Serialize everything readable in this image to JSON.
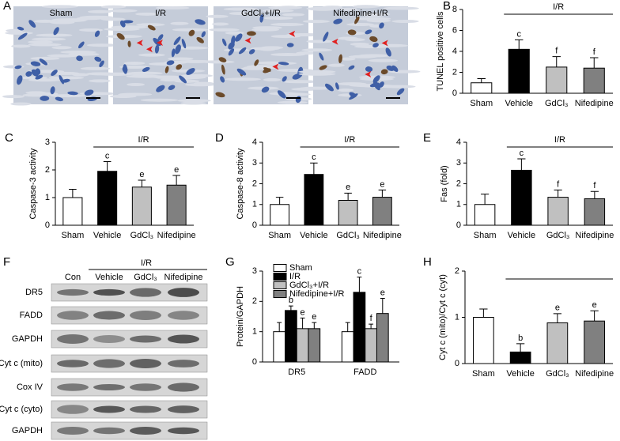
{
  "micrographs": {
    "panel": "A",
    "labels": [
      "Sham",
      "I/R",
      "GdCl₃+I/R",
      "Nifedipine+I/R"
    ]
  },
  "blot": {
    "panel": "F",
    "group": "I/R",
    "lanes": [
      "Con",
      "Vehicle",
      "GdCl₃",
      "Nifedipine"
    ],
    "rows": [
      "DR5",
      "FADD",
      "GAPDH",
      "Cyt c (mito)",
      "Cox IV",
      "Cyt c (cyto)",
      "GAPDH"
    ]
  },
  "chart_data": [
    {
      "type": "bar",
      "panel": "B",
      "ylabel": "TUNEL positive cells",
      "group": "I/R",
      "categories": [
        "Sham",
        "Vehicle",
        "GdCl₃",
        "Nifedipine"
      ],
      "values": [
        1.0,
        4.2,
        2.5,
        2.4
      ],
      "errors": [
        0.4,
        0.9,
        1.0,
        1.0
      ],
      "labels": [
        null,
        "c",
        "f",
        "f"
      ],
      "colors": [
        "#ffffff",
        "#000000",
        "#c0c0c0",
        "#808080"
      ],
      "ylim": [
        0,
        8
      ],
      "yticks": [
        0,
        2,
        4,
        6,
        8
      ]
    },
    {
      "type": "bar",
      "panel": "C",
      "ylabel": "Caspase-3 activity",
      "group": "I/R",
      "categories": [
        "Sham",
        "Vehicle",
        "GdCl₃",
        "Nifedipine"
      ],
      "values": [
        1.0,
        1.95,
        1.38,
        1.45
      ],
      "errors": [
        0.3,
        0.35,
        0.25,
        0.35
      ],
      "labels": [
        null,
        "c",
        "e",
        "e"
      ],
      "colors": [
        "#ffffff",
        "#000000",
        "#c0c0c0",
        "#808080"
      ],
      "ylim": [
        0,
        3
      ],
      "yticks": [
        0,
        1,
        2,
        3
      ]
    },
    {
      "type": "bar",
      "panel": "D",
      "ylabel": "Caspase-8 activity",
      "group": "I/R",
      "categories": [
        "Sham",
        "Vehicle",
        "GdCl₃",
        "Nifedipine"
      ],
      "values": [
        1.0,
        2.45,
        1.2,
        1.35
      ],
      "errors": [
        0.35,
        0.55,
        0.35,
        0.35
      ],
      "labels": [
        null,
        "c",
        "e",
        "e"
      ],
      "colors": [
        "#ffffff",
        "#000000",
        "#c0c0c0",
        "#808080"
      ],
      "ylim": [
        0,
        4
      ],
      "yticks": [
        0,
        1,
        2,
        3,
        4
      ]
    },
    {
      "type": "bar",
      "panel": "E",
      "ylabel": "Fas (fold)",
      "group": "I/R",
      "categories": [
        "Sham",
        "Vehicle",
        "GdCl₃",
        "Nifedipine"
      ],
      "values": [
        1.0,
        2.65,
        1.35,
        1.28
      ],
      "errors": [
        0.5,
        0.55,
        0.35,
        0.35
      ],
      "labels": [
        null,
        "c",
        "f",
        "f"
      ],
      "colors": [
        "#ffffff",
        "#000000",
        "#c0c0c0",
        "#808080"
      ],
      "ylim": [
        0,
        4
      ],
      "yticks": [
        0,
        1,
        2,
        3,
        4
      ]
    },
    {
      "type": "grouped_bar",
      "panel": "G",
      "ylabel": "Protein/GAPDH",
      "categories": [
        "DR5",
        "FADD"
      ],
      "series": [
        {
          "name": "Sham",
          "color": "#ffffff",
          "values": [
            1.0,
            1.0
          ],
          "errors": [
            0.3,
            0.3
          ],
          "labels": [
            null,
            null
          ]
        },
        {
          "name": "I/R",
          "color": "#000000",
          "values": [
            1.7,
            2.3
          ],
          "errors": [
            0.15,
            0.5
          ],
          "labels": [
            "b",
            "c"
          ]
        },
        {
          "name": "GdCl₃+I/R",
          "color": "#c0c0c0",
          "values": [
            1.1,
            1.1
          ],
          "errors": [
            0.35,
            0.15
          ],
          "labels": [
            "e",
            "f"
          ]
        },
        {
          "name": "Nifedipine+I/R",
          "color": "#808080",
          "values": [
            1.1,
            1.6
          ],
          "errors": [
            0.2,
            0.5
          ],
          "labels": [
            "e",
            "e"
          ]
        }
      ],
      "ylim": [
        0,
        3
      ],
      "yticks": [
        0,
        1,
        2,
        3
      ]
    },
    {
      "type": "bar",
      "panel": "H",
      "ylabel": "Cyt c (mito)/Cyt c (cyt)",
      "bracket": true,
      "categories": [
        "Sham",
        "Vehicle",
        "GdCl₃",
        "Nifedipine"
      ],
      "values": [
        1.0,
        0.25,
        0.88,
        0.92
      ],
      "errors": [
        0.18,
        0.18,
        0.2,
        0.22
      ],
      "labels": [
        null,
        "b",
        "e",
        "e"
      ],
      "colors": [
        "#ffffff",
        "#000000",
        "#c0c0c0",
        "#808080"
      ],
      "ylim": [
        0,
        2
      ],
      "yticks": [
        0,
        1,
        2
      ]
    }
  ]
}
